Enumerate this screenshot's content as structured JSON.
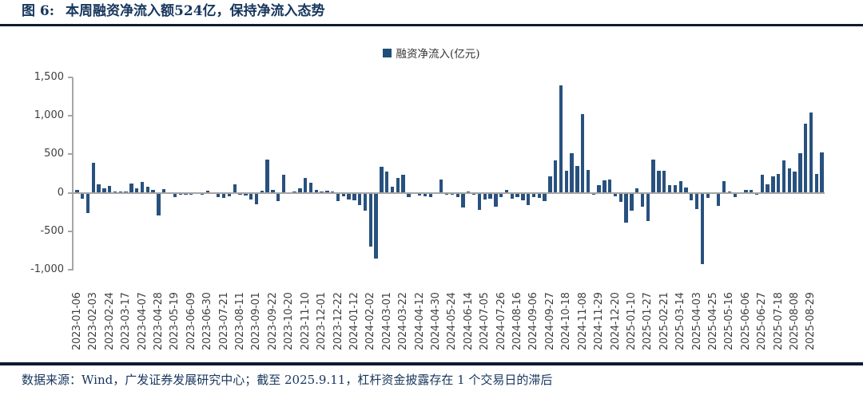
{
  "figure": {
    "label": "图 6:",
    "title": "本周融资净流入额524亿，保持净流入态势"
  },
  "legend": {
    "label": "融资净流入(亿元)",
    "marker_color": "#1F4E79"
  },
  "footer": {
    "text": "数据来源：Wind，广发证券发展研究中心；截至 2025.9.11，杠杆资金披露存在 1 个交易日的滞后"
  },
  "colors": {
    "bar": "#28517E",
    "accent": "#1F4E79",
    "title_text": "#17365D",
    "axis_line": "#A6A6A6",
    "tick_text": "#3F3F3F",
    "divider": "#0E1B33"
  },
  "chart_data": {
    "type": "bar",
    "title": "融资净流入(亿元)",
    "ylabel": "",
    "xlabel": "",
    "unit": "亿元",
    "ylim": [
      -1000,
      1500
    ],
    "grid": false,
    "legend_position": "top-center",
    "yticks": [
      {
        "label": "1,500",
        "value": 1500
      },
      {
        "label": "1,000",
        "value": 1000
      },
      {
        "label": "500",
        "value": 500
      },
      {
        "label": "0",
        "value": 0
      },
      {
        "label": "-500",
        "value": -500
      },
      {
        "label": "-1,000",
        "value": -1000
      }
    ],
    "label_stride": 3,
    "xtick_labels": [
      "2023-01-06",
      "2023-02-03",
      "2023-02-24",
      "2023-03-17",
      "2023-04-07",
      "2023-04-28",
      "2023-05-19",
      "2023-06-09",
      "2023-06-30",
      "2023-07-21",
      "2023-08-11",
      "2023-09-01",
      "2023-09-22",
      "2023-10-20",
      "2023-11-10",
      "2023-12-01",
      "2023-12-22",
      "2024-01-12",
      "2024-02-02",
      "2024-03-01",
      "2024-03-22",
      "2024-04-12",
      "2024-04-30",
      "2024-05-24",
      "2024-06-14",
      "2024-07-05",
      "2024-07-26",
      "2024-08-16",
      "2024-09-06",
      "2024-09-27",
      "2024-10-18",
      "2024-11-08",
      "2024-11-29",
      "2024-12-20",
      "2025-01-10",
      "2025-01-27",
      "2025-02-21",
      "2025-03-14",
      "2025-04-03",
      "2025-04-25",
      "2025-05-16",
      "2025-06-06",
      "2025-06-27",
      "2025-07-18",
      "2025-08-08",
      "2025-08-29"
    ],
    "values": [
      40,
      -75,
      -265,
      385,
      115,
      55,
      90,
      10,
      10,
      15,
      120,
      55,
      140,
      75,
      35,
      -290,
      45,
      -5,
      -60,
      -25,
      -30,
      -20,
      -10,
      -20,
      30,
      -15,
      -55,
      -65,
      -45,
      115,
      -25,
      -40,
      -90,
      -145,
      25,
      430,
      35,
      -110,
      230,
      -10,
      15,
      60,
      195,
      135,
      35,
      5,
      25,
      15,
      -105,
      -45,
      -90,
      -95,
      -155,
      -230,
      -700,
      -850,
      340,
      280,
      75,
      190,
      235,
      -55,
      -15,
      -35,
      -50,
      -55,
      -15,
      175,
      -20,
      -30,
      -60,
      -190,
      15,
      -25,
      -220,
      -90,
      -75,
      -185,
      -60,
      40,
      -75,
      -60,
      -95,
      -160,
      -55,
      -65,
      -110,
      215,
      425,
      1400,
      290,
      510,
      345,
      1020,
      295,
      -30,
      95,
      160,
      175,
      -50,
      -115,
      -390,
      -230,
      55,
      -185,
      -370,
      430,
      290,
      290,
      95,
      100,
      155,
      70,
      -95,
      -210,
      -930,
      -70,
      -10,
      -175,
      150,
      20,
      -60,
      -5,
      35,
      40,
      -20,
      235,
      105,
      210,
      245,
      425,
      315,
      275,
      515,
      900,
      1045,
      240,
      524
    ],
    "last_bar_value": 524
  }
}
